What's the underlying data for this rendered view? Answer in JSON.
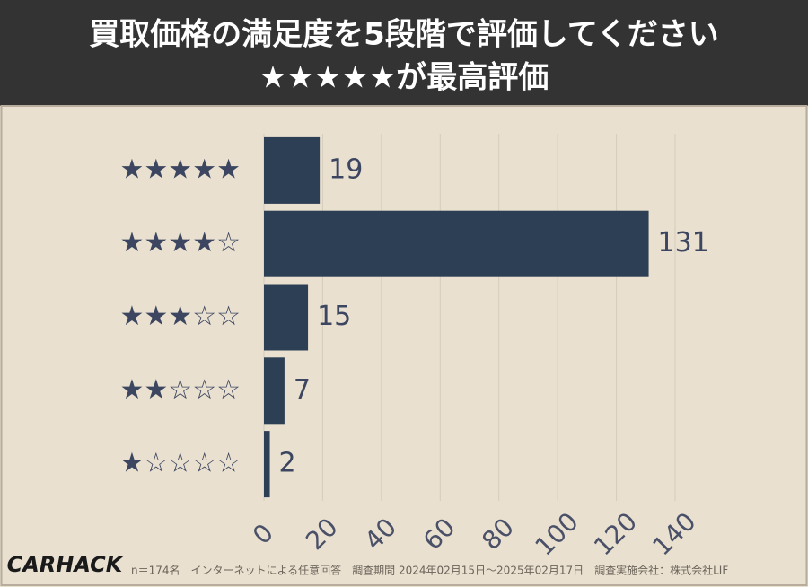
{
  "chart_data": {
    "type": "bar",
    "orientation": "horizontal",
    "title": [
      "買取価格の満足度を5段階で評価してください",
      "★★★★★が最高評価"
    ],
    "categories": [
      "★★★★★",
      "★★★★☆",
      "★★★☆☆",
      "★★☆☆☆",
      "★☆☆☆☆"
    ],
    "values": [
      19,
      131,
      15,
      7,
      2
    ],
    "color": "#2d3f54",
    "xlim": [
      0,
      140
    ],
    "xticks": [
      0,
      20,
      40,
      60,
      80,
      100,
      120,
      140
    ],
    "grid": true
  },
  "footer": {
    "logo": "CARHACK",
    "note": "n＝174名　インターネットによる任意回答　調査期間 2024年02月15日～2025年02月17日　調査実施会社：株式会社LIF"
  }
}
